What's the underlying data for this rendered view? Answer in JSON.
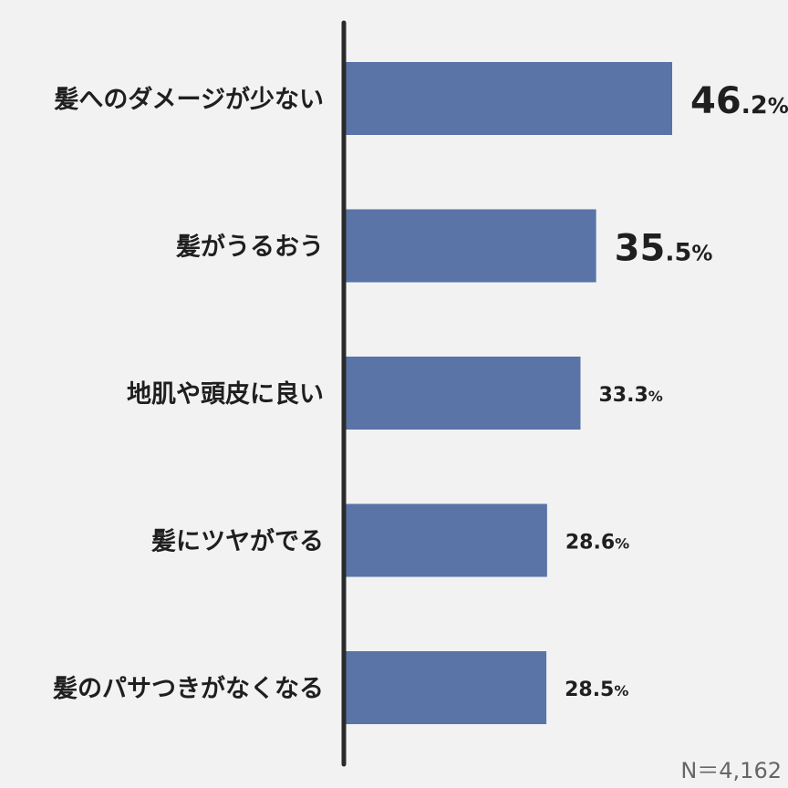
{
  "chart_data": {
    "type": "bar",
    "orientation": "horizontal",
    "categories": [
      "髪へのダメージが少ない",
      "髪がうるおう",
      "地肌や頭皮に良い",
      "髪にツヤがでる",
      "髪のパサつきがなくなる"
    ],
    "values": [
      46.2,
      35.5,
      33.3,
      28.6,
      28.5
    ],
    "value_labels": [
      "46.2%",
      "35.5%",
      "33.3%",
      "28.6%",
      "28.5%"
    ],
    "unit": "%",
    "xlim": [
      0,
      100
    ],
    "grid": false,
    "bar_color": "#5a74a8",
    "axis_color": "#2b2b2b",
    "annotation": "N＝4,162"
  }
}
